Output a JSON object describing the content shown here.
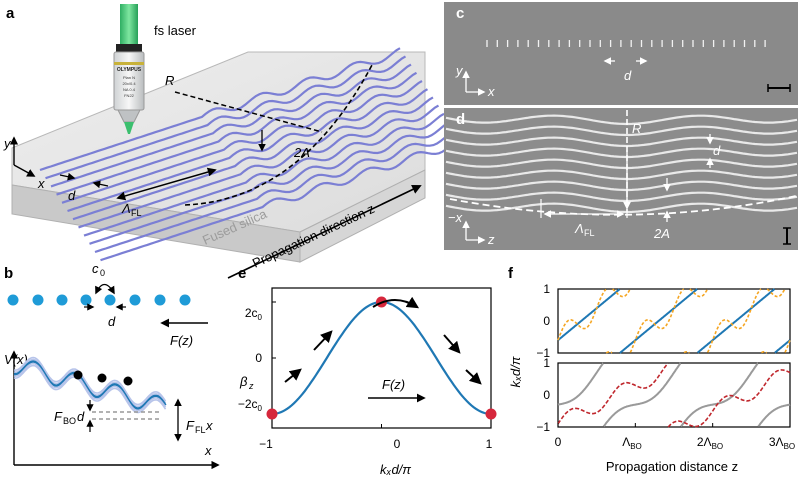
{
  "panels": {
    "a": {
      "label": "a",
      "laser_label": "fs laser",
      "objective": {
        "brand": "OLYMPUS",
        "lines": [
          "Plan N",
          "20x/0.4",
          "NA 0.4",
          "FN22"
        ]
      },
      "material_label": "Fused silica",
      "propagation_label": "Propagation direction z",
      "R": "R",
      "twoA": "2A",
      "d": "d",
      "lambda_FL": "Λ",
      "lambda_FL_sub": "FL",
      "axis_y": "y",
      "axis_x": "x",
      "waveguide_color": "#7b7fd4"
    },
    "c": {
      "label": "c",
      "axis_y": "y",
      "axis_x": "x",
      "d": "d"
    },
    "d": {
      "label": "d",
      "R": "R",
      "d": "d",
      "lambda_FL": "Λ",
      "lambda_FL_sub": "FL",
      "twoA": "2A",
      "axis_x": "−x",
      "axis_z": "z"
    },
    "b": {
      "label": "b",
      "c0": "c",
      "c0_sub": "0",
      "d": "d",
      "Fz": "F(z)",
      "Vx": "V(x)",
      "x": "x",
      "FBO": "F",
      "FBO_sub": "BO",
      "FBO_tail": "d",
      "FFL": "F",
      "FFL_sub": "FL",
      "FFL_tail": "x",
      "dot_color": "#1f9bd7",
      "potential_color": "#1f78b4"
    },
    "e": {
      "label": "e",
      "ylabel": "β",
      "ylabel_sub": "z",
      "xlabel": "kₓd/π",
      "Fz": "F(z)",
      "x_ticks": [
        "−1",
        "0",
        "1"
      ],
      "y_ticks": [
        {
          "v": "2c",
          "s": "0"
        },
        {
          "v": "0",
          "s": ""
        },
        {
          "v": "−2c",
          "s": "0"
        }
      ],
      "curve_color": "#1f78b4",
      "point_color": "#d6273c"
    },
    "f": {
      "label": "f",
      "ylabel": "kₓd/π",
      "xlabel": "Propagation distance z",
      "y_ticks": [
        "1",
        "0",
        "−1"
      ],
      "x_ticks": [
        {
          "v": "0",
          "s": ""
        },
        {
          "v": "Λ",
          "s": "BO"
        },
        {
          "v": "2Λ",
          "s": "BO"
        },
        {
          "v": "3Λ",
          "s": "BO"
        }
      ],
      "colors": {
        "blue": "#1f78b4",
        "orange": "#f5a623",
        "red": "#c0272d",
        "gray": "#9a9a9a"
      }
    }
  },
  "chart_data": [
    {
      "type": "line",
      "panel": "e",
      "title": "",
      "xlabel": "kₓd/π",
      "ylabel": "βz",
      "x": [
        -1,
        -0.5,
        0,
        0.5,
        1
      ],
      "series": [
        {
          "values": [
            -2,
            0,
            2,
            0,
            -2
          ]
        }
      ],
      "markers": [
        [
          -1,
          -2
        ],
        [
          0,
          2
        ],
        [
          1,
          -2
        ]
      ],
      "xlim": [
        -1,
        1
      ],
      "ylim": [
        -2.5,
        2.5
      ],
      "unit": "c0"
    },
    {
      "type": "line",
      "panel": "f",
      "title": "",
      "xlabel": "Propagation distance z",
      "ylabel": "kₓd/π",
      "xlim": [
        0,
        3
      ],
      "ylim": [
        -1,
        1
      ],
      "x_unit": "ΛBO"
    }
  ]
}
